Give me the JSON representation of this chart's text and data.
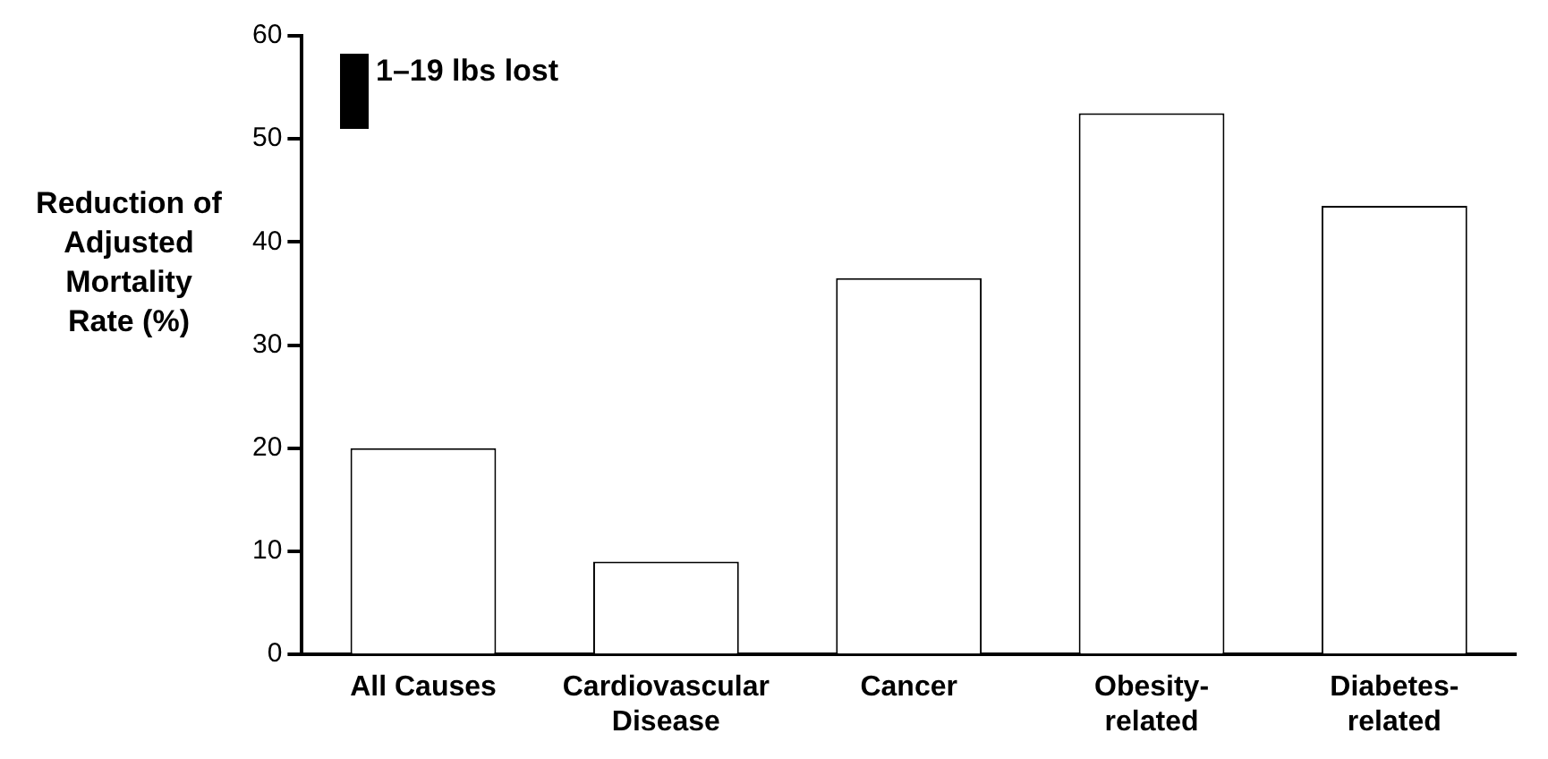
{
  "chart_data": {
    "type": "bar",
    "ylabel": "Reduction of Adjusted Mortality Rate (%)",
    "categories": [
      "All Causes",
      "Cardiovascular Disease",
      "Cancer",
      "Obesity-related",
      "Diabetes-related"
    ],
    "series": [
      {
        "name": "1–19 lbs lost",
        "color": "#ffffff",
        "values": [
          20,
          9,
          36.5,
          52.5,
          43.5
        ]
      }
    ],
    "ylim": [
      0,
      60
    ],
    "yticks": [
      0,
      10,
      20,
      30,
      40,
      50,
      60
    ],
    "grid": false,
    "legend": "top left"
  }
}
